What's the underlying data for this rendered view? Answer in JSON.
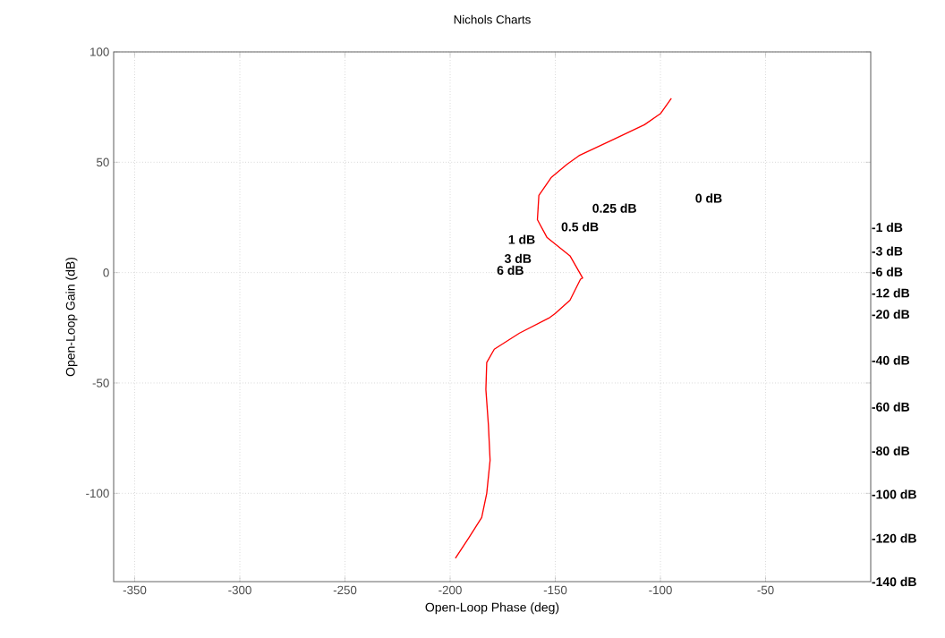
{
  "chart_data": {
    "type": "line",
    "title": "Nichols Charts",
    "xlabel": "Open-Loop Phase (deg)",
    "ylabel": "Open-Loop Gain (dB)",
    "xlim": [
      -360,
      0
    ],
    "ylim": [
      -140,
      100
    ],
    "xticks": [
      -350,
      -300,
      -250,
      -200,
      -150,
      -100,
      -50
    ],
    "yticks": [
      -100,
      -50,
      0,
      50,
      100
    ],
    "grid": true,
    "series": [
      {
        "color": "#ff0000",
        "x": [
          -94.8,
          -100,
          -107.6,
          -121.7,
          -138.7,
          -144.5,
          -152,
          -157.8,
          -158.5,
          -154,
          -143,
          -137,
          -138,
          -143,
          -150,
          -153,
          -167,
          -179,
          -182.6,
          -183,
          -181.8,
          -181,
          -182.6,
          -185,
          -191,
          -197.5
        ],
        "values": [
          79,
          72,
          67,
          60.6,
          53,
          49,
          43,
          35,
          24,
          16,
          7.6,
          -2.4,
          -3,
          -12.5,
          -18.5,
          -20.6,
          -27.4,
          -34.7,
          -40.7,
          -53,
          -69,
          -85,
          -100,
          -111,
          -120,
          -129.4
        ]
      }
    ],
    "annotations": [
      "0 dB",
      "0.25 dB",
      "0.5 dB",
      "1 dB",
      "3 dB",
      "6 dB",
      "-1 dB",
      "-3 dB",
      "-6 dB",
      "-12 dB",
      "-20 dB",
      "-40 dB",
      "-60 dB",
      "-80 dB",
      "-100 dB",
      "-120 dB",
      "-140 dB"
    ]
  }
}
